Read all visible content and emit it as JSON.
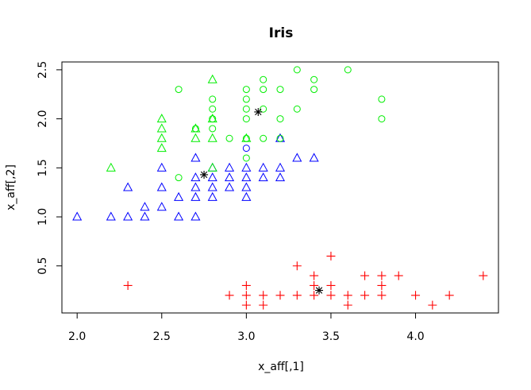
{
  "chart_data": {
    "type": "scatter",
    "title": "Iris",
    "xlabel": "x_aff[,1]",
    "ylabel": "x_aff[,2]",
    "xlim": [
      1.91,
      4.49
    ],
    "ylim": [
      0.02,
      2.58
    ],
    "xticks": [
      "2.0",
      "2.5",
      "3.0",
      "3.5",
      "4.0"
    ],
    "xtick_values": [
      2.0,
      2.5,
      3.0,
      3.5,
      4.0
    ],
    "yticks": [
      "0.5",
      "1.0",
      "1.5",
      "2.0",
      "2.5"
    ],
    "ytick_values": [
      0.5,
      1.0,
      1.5,
      2.0,
      2.5
    ],
    "grid": false,
    "legend": "none",
    "series": [
      {
        "marker": "plus",
        "color": "#ff0000",
        "points": [
          [
            2.3,
            0.3
          ],
          [
            2.9,
            0.2
          ],
          [
            3.0,
            0.1
          ],
          [
            3.0,
            0.2
          ],
          [
            3.0,
            0.3
          ],
          [
            3.1,
            0.1
          ],
          [
            3.1,
            0.2
          ],
          [
            3.2,
            0.2
          ],
          [
            3.3,
            0.2
          ],
          [
            3.3,
            0.5
          ],
          [
            3.4,
            0.2
          ],
          [
            3.4,
            0.3
          ],
          [
            3.4,
            0.4
          ],
          [
            3.5,
            0.2
          ],
          [
            3.5,
            0.3
          ],
          [
            3.5,
            0.6
          ],
          [
            3.6,
            0.1
          ],
          [
            3.6,
            0.2
          ],
          [
            3.7,
            0.2
          ],
          [
            3.7,
            0.4
          ],
          [
            3.8,
            0.2
          ],
          [
            3.8,
            0.3
          ],
          [
            3.8,
            0.4
          ],
          [
            3.9,
            0.4
          ],
          [
            4.0,
            0.2
          ],
          [
            4.1,
            0.1
          ],
          [
            4.2,
            0.2
          ],
          [
            4.4,
            0.4
          ]
        ]
      },
      {
        "marker": "triangle",
        "color": "#0000ff",
        "points": [
          [
            2.0,
            1.0
          ],
          [
            2.2,
            1.0
          ],
          [
            2.3,
            1.0
          ],
          [
            2.3,
            1.3
          ],
          [
            2.4,
            1.0
          ],
          [
            2.4,
            1.1
          ],
          [
            2.5,
            1.1
          ],
          [
            2.5,
            1.3
          ],
          [
            2.5,
            1.5
          ],
          [
            2.6,
            1.0
          ],
          [
            2.6,
            1.2
          ],
          [
            2.7,
            1.0
          ],
          [
            2.7,
            1.2
          ],
          [
            2.7,
            1.3
          ],
          [
            2.7,
            1.4
          ],
          [
            2.7,
            1.6
          ],
          [
            2.8,
            1.2
          ],
          [
            2.8,
            1.3
          ],
          [
            2.8,
            1.4
          ],
          [
            2.8,
            1.5
          ],
          [
            2.9,
            1.3
          ],
          [
            2.9,
            1.4
          ],
          [
            2.9,
            1.5
          ],
          [
            3.0,
            1.2
          ],
          [
            3.0,
            1.3
          ],
          [
            3.0,
            1.4
          ],
          [
            3.0,
            1.5
          ],
          [
            3.1,
            1.4
          ],
          [
            3.1,
            1.5
          ],
          [
            3.2,
            1.4
          ],
          [
            3.2,
            1.5
          ],
          [
            3.2,
            1.8
          ],
          [
            3.3,
            1.6
          ],
          [
            3.4,
            1.6
          ]
        ]
      },
      {
        "marker": "triangle",
        "color": "#00ee00",
        "points": [
          [
            2.2,
            1.5
          ],
          [
            2.5,
            1.7
          ],
          [
            2.5,
            1.8
          ],
          [
            2.5,
            1.9
          ],
          [
            2.5,
            2.0
          ],
          [
            2.7,
            1.8
          ],
          [
            2.7,
            1.9
          ],
          [
            2.8,
            1.5
          ],
          [
            2.8,
            1.8
          ],
          [
            2.8,
            2.0
          ],
          [
            2.8,
            2.4
          ],
          [
            3.0,
            1.8
          ]
        ]
      },
      {
        "marker": "circle",
        "color": "#00ee00",
        "points": [
          [
            2.6,
            1.4
          ],
          [
            2.6,
            2.3
          ],
          [
            2.7,
            1.9
          ],
          [
            2.8,
            1.9
          ],
          [
            2.8,
            2.0
          ],
          [
            2.8,
            2.1
          ],
          [
            2.8,
            2.2
          ],
          [
            2.9,
            1.8
          ],
          [
            3.0,
            1.6
          ],
          [
            3.0,
            1.8
          ],
          [
            3.0,
            2.0
          ],
          [
            3.0,
            2.1
          ],
          [
            3.0,
            2.2
          ],
          [
            3.0,
            2.3
          ],
          [
            3.1,
            1.8
          ],
          [
            3.1,
            2.1
          ],
          [
            3.1,
            2.3
          ],
          [
            3.1,
            2.4
          ],
          [
            3.2,
            1.8
          ],
          [
            3.2,
            2.0
          ],
          [
            3.2,
            2.3
          ],
          [
            3.3,
            2.1
          ],
          [
            3.3,
            2.5
          ],
          [
            3.4,
            2.3
          ],
          [
            3.4,
            2.4
          ],
          [
            3.6,
            2.5
          ],
          [
            3.8,
            2.0
          ],
          [
            3.8,
            2.2
          ]
        ]
      },
      {
        "marker": "circle",
        "color": "#0000ff",
        "points": [
          [
            3.0,
            1.7
          ]
        ]
      },
      {
        "marker": "asterisk",
        "color": "#000000",
        "points": [
          [
            2.75,
            1.43
          ],
          [
            3.07,
            2.07
          ],
          [
            3.43,
            0.25
          ]
        ]
      }
    ]
  }
}
